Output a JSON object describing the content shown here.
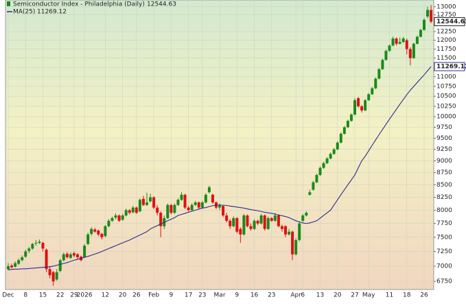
{
  "chart_data": {
    "type": "candlestick",
    "title": "Semiconductor Index - Philadelphia (Daily)",
    "log_scale": true,
    "grid": true,
    "up_color": "#1a8a1a",
    "down_color": "#e01010",
    "ylim": [
      6620,
      13210
    ],
    "yticks": [
      6750,
      7000,
      7250,
      7500,
      7750,
      8000,
      8250,
      8500,
      8750,
      9000,
      9250,
      9500,
      9750,
      10000,
      10250,
      10500,
      10750,
      11000,
      11250,
      11500,
      11750,
      12000,
      12250,
      12750,
      13000
    ],
    "categories": [
      "Dec",
      null,
      null,
      null,
      null,
      "8",
      null,
      null,
      null,
      null,
      "15",
      null,
      null,
      null,
      null,
      "22",
      null,
      null,
      null,
      "29",
      null,
      null,
      "2026",
      null,
      null,
      null,
      null,
      null,
      "12",
      null,
      null,
      null,
      null,
      "20",
      null,
      null,
      null,
      "26",
      null,
      null,
      null,
      null,
      "Feb",
      null,
      null,
      null,
      null,
      "9",
      null,
      null,
      null,
      null,
      "17",
      null,
      null,
      null,
      "23",
      null,
      null,
      null,
      null,
      "Mar",
      null,
      null,
      null,
      null,
      "9",
      null,
      null,
      null,
      null,
      "16",
      null,
      null,
      null,
      null,
      "23",
      null,
      null,
      null,
      null,
      null,
      null,
      "Apr",
      null,
      "6",
      null,
      null,
      null,
      null,
      "13",
      null,
      null,
      null,
      null,
      "20",
      null,
      null,
      null,
      null,
      "27",
      null,
      null,
      null,
      "May",
      null,
      null,
      null,
      null,
      null,
      "11",
      null,
      null,
      null,
      null,
      "18",
      null,
      null,
      null,
      null,
      "26",
      null,
      null
    ],
    "ohlc": [
      [
        6950,
        7050,
        6930,
        7000
      ],
      [
        7010,
        7040,
        6960,
        6980
      ],
      [
        6990,
        7080,
        6980,
        7050
      ],
      [
        7040,
        7130,
        7020,
        7100
      ],
      [
        7100,
        7180,
        7080,
        7150
      ],
      [
        7160,
        7280,
        7140,
        7250
      ],
      [
        7260,
        7330,
        7220,
        7300
      ],
      [
        7300,
        7400,
        7280,
        7380
      ],
      [
        7390,
        7450,
        7350,
        7400
      ],
      [
        7400,
        7460,
        7380,
        7420
      ],
      [
        7400,
        7420,
        7250,
        7300
      ],
      [
        7280,
        7300,
        6900,
        6950
      ],
      [
        6950,
        7000,
        6800,
        6850
      ],
      [
        6900,
        6920,
        6680,
        6750
      ],
      [
        6780,
        6950,
        6760,
        6900
      ],
      [
        6920,
        7120,
        6900,
        7100
      ],
      [
        7100,
        7230,
        7080,
        7200
      ],
      [
        7210,
        7240,
        7130,
        7150
      ],
      [
        7140,
        7230,
        7120,
        7200
      ],
      [
        7220,
        7250,
        7150,
        7180
      ],
      [
        7200,
        7220,
        7120,
        7150
      ],
      [
        7160,
        7180,
        7080,
        7100
      ],
      [
        7150,
        7380,
        7140,
        7350
      ],
      [
        7380,
        7580,
        7360,
        7550
      ],
      [
        7560,
        7680,
        7530,
        7650
      ],
      [
        7640,
        7670,
        7580,
        7600
      ],
      [
        7620,
        7640,
        7520,
        7550
      ],
      [
        7560,
        7580,
        7460,
        7500
      ],
      [
        7520,
        7720,
        7500,
        7700
      ],
      [
        7700,
        7830,
        7680,
        7800
      ],
      [
        7800,
        7880,
        7780,
        7850
      ],
      [
        7860,
        7940,
        7830,
        7900
      ],
      [
        7900,
        7920,
        7780,
        7800
      ],
      [
        7820,
        7930,
        7800,
        7900
      ],
      [
        7900,
        8030,
        7880,
        8000
      ],
      [
        8000,
        8020,
        7920,
        7950
      ],
      [
        7960,
        8080,
        7940,
        8050
      ],
      [
        8050,
        8070,
        7930,
        7950
      ],
      [
        7980,
        8230,
        7960,
        8200
      ],
      [
        8220,
        8280,
        8080,
        8100
      ],
      [
        8100,
        8340,
        8080,
        8150
      ],
      [
        8170,
        8320,
        8150,
        8250
      ],
      [
        8250,
        8270,
        8020,
        8050
      ],
      [
        8050,
        8100,
        7900,
        7950
      ],
      [
        7950,
        7980,
        7500,
        7700
      ],
      [
        7700,
        7900,
        7650,
        7850
      ],
      [
        7850,
        8130,
        7830,
        8100
      ],
      [
        8100,
        8120,
        7920,
        7950
      ],
      [
        7950,
        8130,
        7930,
        8100
      ],
      [
        8100,
        8230,
        8080,
        8200
      ],
      [
        8200,
        8350,
        8180,
        8300
      ],
      [
        8300,
        8320,
        8020,
        8050
      ],
      [
        8050,
        8080,
        7970,
        8000
      ],
      [
        8000,
        8130,
        7980,
        8100
      ],
      [
        8100,
        8180,
        8080,
        8150
      ],
      [
        8150,
        8170,
        8020,
        8050
      ],
      [
        8050,
        8180,
        8030,
        8150
      ],
      [
        8150,
        8330,
        8130,
        8300
      ],
      [
        8350,
        8480,
        8330,
        8450
      ],
      [
        8300,
        8320,
        8120,
        8150
      ],
      [
        8150,
        8170,
        8020,
        8050
      ],
      [
        8050,
        8130,
        8000,
        8100
      ],
      [
        8080,
        8100,
        7870,
        7900
      ],
      [
        7900,
        7950,
        7770,
        7800
      ],
      [
        7800,
        7830,
        7650,
        7700
      ],
      [
        7700,
        7880,
        7680,
        7850
      ],
      [
        7850,
        7870,
        7570,
        7600
      ],
      [
        7650,
        7680,
        7400,
        7550
      ],
      [
        7550,
        7930,
        7530,
        7900
      ],
      [
        7900,
        7920,
        7680,
        7700
      ],
      [
        7700,
        7750,
        7620,
        7650
      ],
      [
        7650,
        7830,
        7630,
        7800
      ],
      [
        7800,
        7820,
        7720,
        7750
      ],
      [
        7750,
        7930,
        7730,
        7900
      ],
      [
        7900,
        7920,
        7620,
        7650
      ],
      [
        7650,
        7880,
        7630,
        7850
      ],
      [
        7850,
        7870,
        7780,
        7800
      ],
      [
        7800,
        7950,
        7780,
        7900
      ],
      [
        7900,
        7920,
        7680,
        7700
      ],
      [
        7700,
        7730,
        7600,
        7650
      ],
      [
        7700,
        7720,
        7500,
        7550
      ],
      [
        7550,
        7650,
        7530,
        7600
      ],
      [
        7600,
        7620,
        7100,
        7200
      ],
      [
        7200,
        7480,
        7180,
        7450
      ],
      [
        7450,
        7780,
        7430,
        7750
      ],
      [
        7800,
        7930,
        7780,
        7900
      ],
      [
        7900,
        7980,
        7880,
        7950
      ],
      [
        8300,
        8400,
        8280,
        8350
      ],
      [
        8400,
        8580,
        8380,
        8550
      ],
      [
        8550,
        8730,
        8530,
        8700
      ],
      [
        8700,
        8880,
        8680,
        8850
      ],
      [
        8850,
        8980,
        8830,
        8950
      ],
      [
        8950,
        9080,
        8930,
        9050
      ],
      [
        9050,
        9180,
        9030,
        9150
      ],
      [
        9150,
        9280,
        9130,
        9250
      ],
      [
        9250,
        9430,
        9230,
        9400
      ],
      [
        9400,
        9630,
        9380,
        9600
      ],
      [
        9600,
        9780,
        9580,
        9750
      ],
      [
        9750,
        9930,
        9730,
        9900
      ],
      [
        9900,
        10080,
        9880,
        10050
      ],
      [
        10050,
        10450,
        10030,
        10400
      ],
      [
        10450,
        10480,
        10220,
        10250
      ],
      [
        10250,
        10280,
        10100,
        10150
      ],
      [
        10150,
        10430,
        10130,
        10400
      ],
      [
        10400,
        10580,
        10380,
        10550
      ],
      [
        10550,
        10730,
        10530,
        10700
      ],
      [
        10700,
        10980,
        10680,
        10950
      ],
      [
        10950,
        11230,
        10930,
        11200
      ],
      [
        11200,
        11480,
        11180,
        11450
      ],
      [
        11450,
        11730,
        11430,
        11700
      ],
      [
        11700,
        11880,
        11680,
        11850
      ],
      [
        11850,
        12100,
        11830,
        12050
      ],
      [
        12050,
        12080,
        11850,
        11900
      ],
      [
        11900,
        12080,
        11880,
        11950
      ],
      [
        11950,
        12100,
        11930,
        12050
      ],
      [
        12000,
        12050,
        11600,
        11750
      ],
      [
        11750,
        11800,
        11300,
        11500
      ],
      [
        11500,
        11930,
        11480,
        11900
      ],
      [
        11900,
        12130,
        11880,
        12100
      ],
      [
        12100,
        12330,
        12080,
        12300
      ],
      [
        12300,
        12650,
        12280,
        12600
      ],
      [
        12700,
        13000,
        12650,
        12900
      ],
      [
        12900,
        13050,
        12500,
        12544.63
      ]
    ],
    "series": [
      {
        "name": "MA(25)",
        "color": "#2b2b8c",
        "values": [
          6940,
          6945,
          6950,
          6950,
          6955,
          6955,
          6960,
          6965,
          6970,
          6975,
          6980,
          6985,
          6990,
          7000,
          7015,
          7030,
          7045,
          7060,
          7080,
          7100,
          7115,
          7130,
          7150,
          7165,
          7185,
          7205,
          7225,
          7250,
          7275,
          7300,
          7325,
          7350,
          7375,
          7400,
          7425,
          7450,
          7480,
          7510,
          7540,
          7570,
          7600,
          7650,
          7680,
          7710,
          7740,
          7770,
          7800,
          7830,
          7860,
          7900,
          7920,
          7940,
          7960,
          7980,
          8000,
          8020,
          8040,
          8050,
          8070,
          8085,
          8100,
          8100,
          8095,
          8090,
          8080,
          8070,
          8060,
          8050,
          8040,
          8025,
          8010,
          8000,
          7990,
          7975,
          7960,
          7950,
          7940,
          7925,
          7910,
          7895,
          7880,
          7860,
          7830,
          7800,
          7780,
          7760,
          7750,
          7760,
          7780,
          7800,
          7850,
          7900,
          7950,
          8000,
          8100,
          8200,
          8300,
          8400,
          8500,
          8600,
          8700,
          8850,
          9000,
          9100,
          9220,
          9340,
          9460,
          9580,
          9700,
          9820,
          9940,
          10060,
          10180,
          10300,
          10420,
          10540,
          10650,
          10750,
          10850,
          10950,
          11050,
          11160,
          11269.12
        ]
      }
    ]
  }
}
